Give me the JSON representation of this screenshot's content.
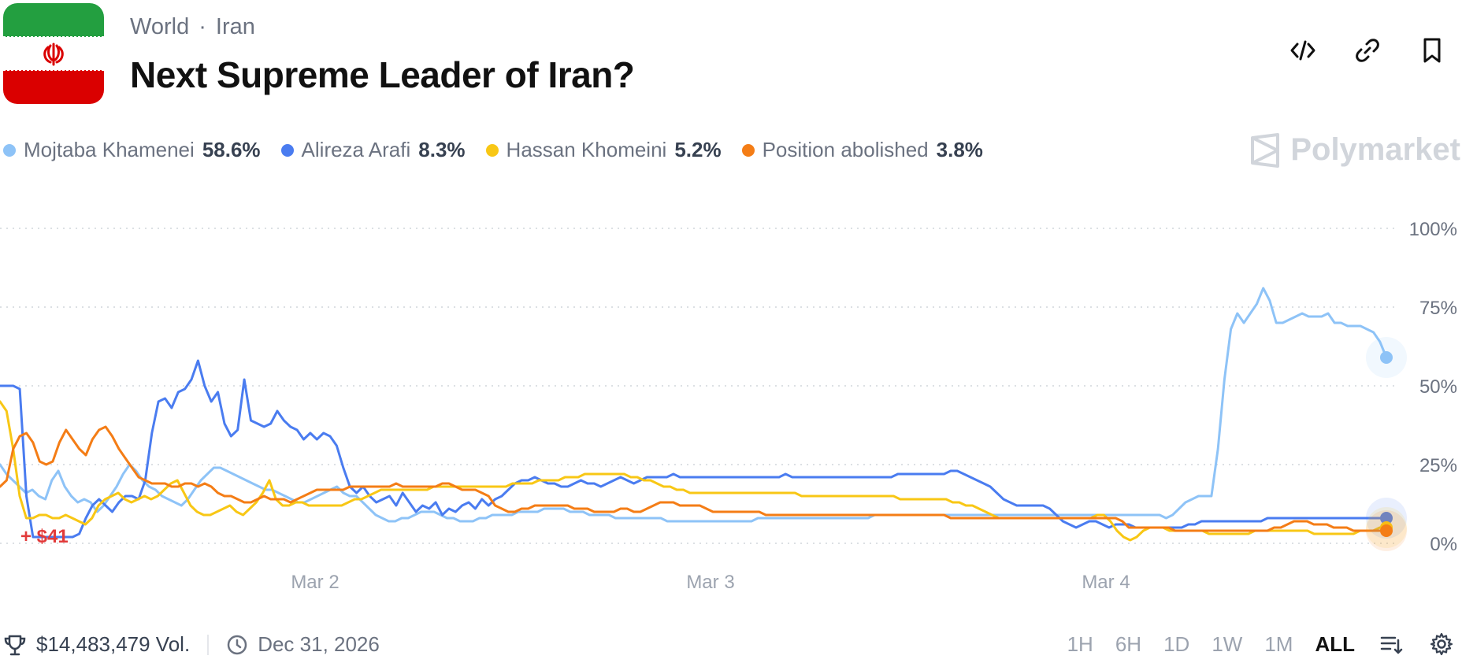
{
  "breadcrumb": {
    "category": "World",
    "separator": "·",
    "subcategory": "Iran"
  },
  "title": "Next Supreme Leader of Iran?",
  "header_actions": [
    {
      "name": "embed-icon"
    },
    {
      "name": "link-icon"
    },
    {
      "name": "bookmark-icon"
    }
  ],
  "legend": [
    {
      "name": "Mojtaba Khamenei",
      "value": "58.6%",
      "color": "#8ec3f7"
    },
    {
      "name": "Alireza Arafi",
      "value": "8.3%",
      "color": "#4a7cf0"
    },
    {
      "name": "Hassan Khomeini",
      "value": "5.2%",
      "color": "#f8c715"
    },
    {
      "name": "Position abolished",
      "value": "3.8%",
      "color": "#f47d16"
    }
  ],
  "brand": {
    "label": "Polymarket"
  },
  "pnl_label": "+ $41",
  "footer": {
    "volume": "$14,483,479 Vol.",
    "end_date": "Dec 31, 2026"
  },
  "ranges": [
    "1H",
    "6H",
    "1D",
    "1W",
    "1M",
    "ALL"
  ],
  "active_range": "ALL",
  "chart_data": {
    "type": "line",
    "x_ticks": [
      "Mar 2",
      "Mar 3",
      "Mar 4"
    ],
    "y_ticks": [
      "100%",
      "75%",
      "50%",
      "25%",
      "0%"
    ],
    "ylim": [
      0,
      100
    ],
    "grid": true,
    "series": [
      {
        "name": "Mojtaba Khamenei",
        "color": "#8ec3f7",
        "values": [
          25,
          22,
          20,
          18,
          16,
          17,
          15,
          14,
          20,
          23,
          18,
          15,
          13,
          14,
          13,
          10,
          12,
          15,
          18,
          22,
          25,
          23,
          20,
          18,
          17,
          15,
          14,
          13,
          12,
          14,
          17,
          20,
          22,
          24,
          24,
          23,
          22,
          21,
          20,
          19,
          18,
          17,
          17,
          16,
          15,
          14,
          13,
          13,
          14,
          15,
          16,
          17,
          18,
          16,
          15,
          15,
          13,
          11,
          9,
          8,
          7,
          7,
          8,
          8,
          9,
          10,
          10,
          10,
          9,
          8,
          8,
          7,
          7,
          7,
          8,
          8,
          9,
          9,
          9,
          9,
          10,
          10,
          10,
          10,
          11,
          11,
          11,
          11,
          10,
          10,
          10,
          9,
          9,
          9,
          9,
          8,
          8,
          8,
          8,
          8,
          8,
          8,
          8,
          7,
          7,
          7,
          7,
          7,
          7,
          7,
          7,
          7,
          7,
          7,
          7,
          7,
          7,
          8,
          8,
          8,
          8,
          8,
          8,
          8,
          8,
          8,
          8,
          8,
          8,
          8,
          8,
          8,
          8,
          8,
          8,
          9,
          9,
          9,
          9,
          9,
          9,
          9,
          9,
          9,
          9,
          9,
          9,
          9,
          9,
          9,
          9,
          9,
          9,
          9,
          9,
          9,
          9,
          9,
          9,
          9,
          9,
          9,
          9,
          9,
          9,
          9,
          9,
          9,
          9,
          9,
          9,
          9,
          9,
          9,
          9,
          9,
          9,
          9,
          9,
          9,
          8,
          9,
          11,
          13,
          14,
          15,
          15,
          15,
          30,
          52,
          68,
          73,
          70,
          73,
          76,
          81,
          77,
          70,
          70,
          71,
          72,
          73,
          72,
          72,
          72,
          73,
          70,
          70,
          69,
          69,
          69,
          68,
          67,
          64,
          59
        ],
        "latest": "58.6%"
      },
      {
        "name": "Alireza Arafi",
        "color": "#4a7cf0",
        "values": [
          50,
          50,
          50,
          49,
          15,
          2,
          2,
          2,
          2,
          2,
          2,
          2,
          3,
          8,
          12,
          14,
          12,
          10,
          13,
          15,
          15,
          14,
          20,
          35,
          45,
          46,
          43,
          48,
          49,
          52,
          58,
          50,
          45,
          48,
          38,
          34,
          36,
          52,
          39,
          38,
          37,
          38,
          42,
          39,
          37,
          36,
          33,
          35,
          33,
          35,
          34,
          31,
          24,
          18,
          16,
          18,
          15,
          13,
          14,
          15,
          12,
          16,
          13,
          10,
          12,
          11,
          13,
          9,
          11,
          10,
          12,
          13,
          11,
          14,
          12,
          14,
          15,
          17,
          19,
          20,
          20,
          21,
          20,
          19,
          19,
          18,
          18,
          19,
          20,
          19,
          19,
          18,
          19,
          20,
          21,
          20,
          19,
          20,
          21,
          21,
          21,
          21,
          22,
          21,
          21,
          21,
          21,
          21,
          21,
          21,
          21,
          21,
          21,
          21,
          21,
          21,
          21,
          21,
          21,
          22,
          21,
          21,
          21,
          21,
          21,
          21,
          21,
          21,
          21,
          21,
          21,
          21,
          21,
          21,
          21,
          21,
          22,
          22,
          22,
          22,
          22,
          22,
          22,
          22,
          23,
          23,
          22,
          21,
          20,
          19,
          18,
          16,
          14,
          13,
          12,
          12,
          12,
          12,
          12,
          11,
          9,
          7,
          6,
          5,
          6,
          7,
          7,
          6,
          5,
          6,
          6,
          6,
          5,
          5,
          5,
          5,
          5,
          5,
          5,
          5,
          6,
          6,
          7,
          7,
          7,
          7,
          7,
          7,
          7,
          7,
          7,
          7,
          8,
          8,
          8,
          8,
          8,
          8,
          8,
          8,
          8,
          8,
          8,
          8,
          8,
          8,
          8,
          8,
          8,
          8,
          8
        ],
        "latest": "8.3%"
      },
      {
        "name": "Hassan Khomeini",
        "color": "#f8c715",
        "values": [
          45,
          42,
          30,
          15,
          8,
          8,
          9,
          9,
          8,
          8,
          9,
          8,
          7,
          6,
          8,
          12,
          14,
          15,
          16,
          14,
          13,
          14,
          15,
          14,
          15,
          17,
          19,
          20,
          16,
          12,
          10,
          9,
          9,
          10,
          11,
          12,
          10,
          9,
          11,
          13,
          16,
          20,
          14,
          12,
          12,
          13,
          13,
          12,
          12,
          12,
          12,
          12,
          12,
          13,
          14,
          14,
          15,
          16,
          17,
          17,
          17,
          17,
          17,
          17,
          17,
          17,
          18,
          18,
          18,
          18,
          18,
          18,
          18,
          18,
          18,
          18,
          18,
          18,
          19,
          19,
          19,
          19,
          20,
          20,
          20,
          20,
          21,
          21,
          21,
          22,
          22,
          22,
          22,
          22,
          22,
          22,
          21,
          21,
          20,
          20,
          19,
          18,
          18,
          17,
          17,
          16,
          16,
          16,
          16,
          16,
          16,
          16,
          16,
          16,
          16,
          16,
          16,
          16,
          16,
          16,
          16,
          16,
          15,
          15,
          15,
          15,
          15,
          15,
          15,
          15,
          15,
          15,
          15,
          15,
          15,
          15,
          15,
          14,
          14,
          14,
          14,
          14,
          14,
          14,
          14,
          13,
          13,
          12,
          12,
          11,
          10,
          9,
          8,
          8,
          8,
          8,
          8,
          8,
          8,
          8,
          8,
          8,
          8,
          8,
          8,
          8,
          8,
          9,
          9,
          7,
          4,
          2,
          1,
          2,
          4,
          5,
          5,
          5,
          4,
          4,
          4,
          4,
          4,
          4,
          3,
          3,
          3,
          3,
          3,
          3,
          3,
          4,
          4,
          4,
          4,
          4,
          4,
          4,
          4,
          4,
          3,
          3,
          3,
          3,
          3,
          3,
          3,
          4,
          4,
          4,
          5,
          5
        ],
        "latest": "5.2%"
      },
      {
        "name": "Position abolished",
        "color": "#f47d16",
        "values": [
          18,
          20,
          30,
          34,
          35,
          32,
          26,
          25,
          26,
          32,
          36,
          33,
          30,
          28,
          33,
          36,
          37,
          34,
          30,
          27,
          24,
          21,
          20,
          19,
          19,
          19,
          18,
          18,
          19,
          19,
          18,
          19,
          18,
          16,
          15,
          15,
          14,
          13,
          13,
          14,
          15,
          14,
          14,
          14,
          13,
          14,
          15,
          16,
          17,
          17,
          17,
          17,
          17,
          18,
          18,
          18,
          18,
          18,
          18,
          18,
          19,
          18,
          18,
          18,
          18,
          18,
          18,
          19,
          19,
          18,
          17,
          17,
          17,
          16,
          15,
          12,
          11,
          10,
          10,
          11,
          11,
          12,
          12,
          12,
          12,
          12,
          12,
          11,
          11,
          11,
          10,
          10,
          10,
          10,
          11,
          11,
          10,
          10,
          11,
          12,
          13,
          13,
          13,
          12,
          12,
          12,
          12,
          11,
          10,
          10,
          10,
          10,
          10,
          10,
          10,
          10,
          9,
          9,
          9,
          9,
          9,
          9,
          9,
          9,
          9,
          9,
          9,
          9,
          9,
          9,
          9,
          9,
          9,
          9,
          9,
          9,
          9,
          9,
          9,
          9,
          9,
          9,
          9,
          9,
          8,
          8,
          8,
          8,
          8,
          8,
          8,
          8,
          8,
          8,
          8,
          8,
          8,
          8,
          8,
          8,
          8,
          8,
          8,
          8,
          8,
          8,
          8,
          8,
          8,
          8,
          7,
          5,
          5,
          5,
          5,
          5,
          5,
          5,
          4,
          4,
          4,
          4,
          4,
          4,
          4,
          4,
          4,
          4,
          4,
          4,
          4,
          4,
          4,
          5,
          5,
          6,
          7,
          7,
          7,
          6,
          6,
          6,
          5,
          5,
          5,
          4,
          4,
          4,
          4,
          4,
          4
        ],
        "latest": "3.8%"
      }
    ]
  }
}
